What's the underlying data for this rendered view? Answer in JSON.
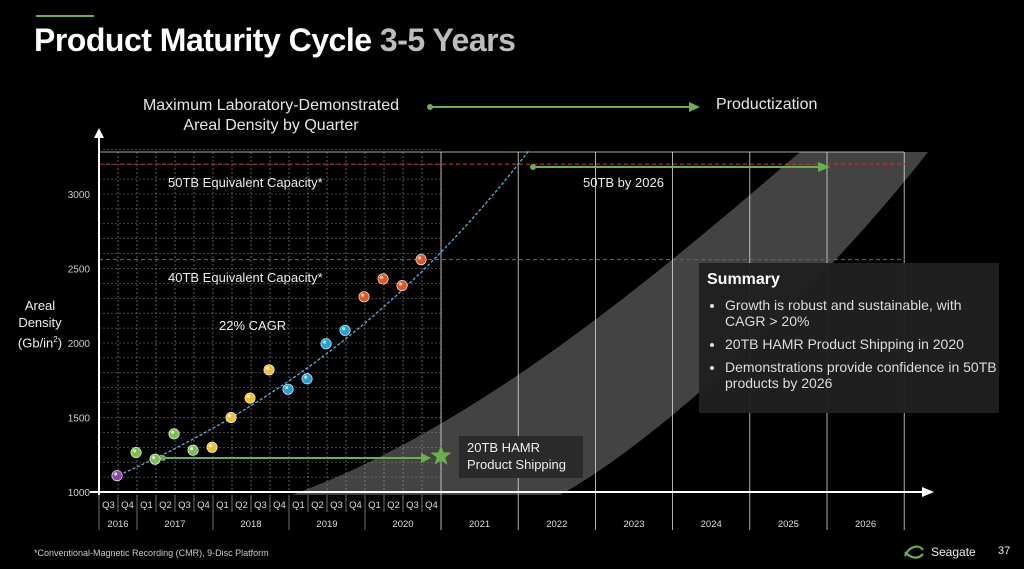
{
  "title": {
    "main": "Product Maturity Cycle ",
    "sub": "3-5 Years"
  },
  "header": {
    "left": "Maximum Laboratory-Demonstrated Areal Density by Quarter",
    "right": "Productization"
  },
  "y_axis_label": {
    "line1": "Areal",
    "line2": "Density",
    "line3": "(Gb/in",
    "sup": "2",
    "line3_end": ")"
  },
  "summary": {
    "heading": "Summary",
    "bullets": [
      "Growth is robust and sustainable, with CAGR > 20%",
      "20TB HAMR Product Shipping in 2020",
      "Demonstrations provide confidence in 50TB products by 2026"
    ]
  },
  "callout": {
    "line1": "20TB HAMR",
    "line2": "Product Shipping"
  },
  "footnote": "*Conventional-Magnetic Recording (CMR), 9-Disc Platform",
  "brand": "Seagate",
  "page_number": "37",
  "colors": {
    "green": "#6ab04c",
    "purple": "#8e44ad",
    "green_dot": "#7cc04e",
    "yellow": "#f2c12e",
    "blue": "#1fa3d8",
    "orange": "#e8551c",
    "red_dashed": "#c0392b",
    "trend": "#5ab0e0"
  },
  "chart_data": {
    "type": "scatter",
    "ylim": [
      1000,
      3300
    ],
    "yticks": [
      1000,
      1500,
      2000,
      2500,
      3000
    ],
    "quarter_labels": [
      "Q3",
      "Q4",
      "Q1",
      "Q2",
      "Q3",
      "Q4",
      "Q1",
      "Q2",
      "Q3",
      "Q4",
      "Q1",
      "Q2",
      "Q3",
      "Q4",
      "Q1",
      "Q2",
      "Q3",
      "Q4"
    ],
    "quarter_years": [
      {
        "label": "2016",
        "from": 0,
        "to": 1
      },
      {
        "label": "2017",
        "from": 2,
        "to": 5
      },
      {
        "label": "2018",
        "from": 6,
        "to": 9
      },
      {
        "label": "2019",
        "from": 10,
        "to": 13
      },
      {
        "label": "2020",
        "from": 14,
        "to": 17
      }
    ],
    "future_years": [
      "2021",
      "2022",
      "2023",
      "2024",
      "2025",
      "2026"
    ],
    "points": [
      {
        "q": 0.95,
        "y": 1110,
        "c": "purple"
      },
      {
        "q": 1.95,
        "y": 1265,
        "c": "green_dot"
      },
      {
        "q": 2.95,
        "y": 1220,
        "c": "green_dot"
      },
      {
        "q": 3.95,
        "y": 1390,
        "c": "green_dot"
      },
      {
        "q": 4.95,
        "y": 1280,
        "c": "green_dot"
      },
      {
        "q": 5.95,
        "y": 1300,
        "c": "yellow"
      },
      {
        "q": 6.95,
        "y": 1500,
        "c": "yellow"
      },
      {
        "q": 7.95,
        "y": 1630,
        "c": "yellow"
      },
      {
        "q": 8.95,
        "y": 1820,
        "c": "yellow"
      },
      {
        "q": 9.95,
        "y": 1690,
        "c": "blue"
      },
      {
        "q": 10.95,
        "y": 1760,
        "c": "blue"
      },
      {
        "q": 11.95,
        "y": 1995,
        "c": "blue"
      },
      {
        "q": 12.95,
        "y": 2085,
        "c": "blue"
      },
      {
        "q": 13.95,
        "y": 2310,
        "c": "orange"
      },
      {
        "q": 14.95,
        "y": 2430,
        "c": "orange"
      },
      {
        "q": 15.95,
        "y": 2385,
        "c": "orange"
      },
      {
        "q": 16.95,
        "y": 2560,
        "c": "orange"
      }
    ],
    "reference_lines": [
      {
        "y": 3200,
        "label": "50TB Equivalent Capacity*"
      },
      {
        "y": 2560,
        "label": "40TB Equivalent Capacity*"
      }
    ],
    "annotations": {
      "cagr": "22% CAGR",
      "target_50tb": "50TB by 2026"
    }
  }
}
